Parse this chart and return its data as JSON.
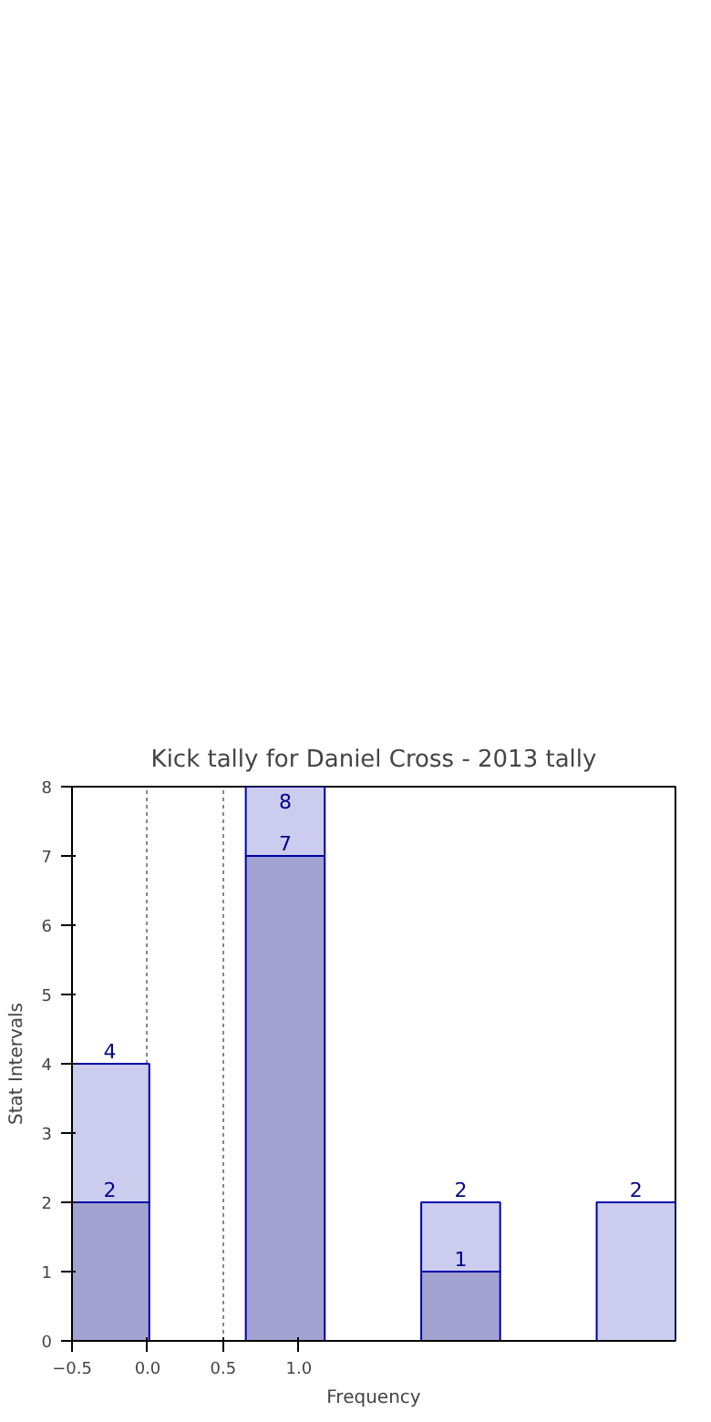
{
  "chart_data": {
    "type": "bar",
    "title": "Kick tally for Daniel Cross - 2013 tally",
    "xlabel": "Frequency",
    "ylabel": "Stat Intervals",
    "x": [
      -0.25,
      0.91,
      2.07,
      3.23
    ],
    "stacked": true,
    "series": [
      {
        "color": "#a3a3d1",
        "values": [
          2,
          7,
          1,
          null
        ],
        "value_labels": [
          "2",
          "7",
          "1",
          null
        ]
      },
      {
        "color": "#ccccee",
        "values": [
          2,
          1,
          1,
          2
        ]
      }
    ],
    "totals": [
      "4",
      "8",
      "2",
      "2"
    ],
    "xlim": [
      -0.5,
      3.49
    ],
    "xticks": [
      {
        "value": -0.5,
        "label": "−0.5"
      },
      {
        "value": 0,
        "label": "0.0"
      },
      {
        "value": 0.5,
        "label": "0.5"
      },
      {
        "value": 1,
        "label": "1.0"
      }
    ],
    "ylim": [
      0,
      8
    ],
    "yticks": [
      0,
      1,
      2,
      3,
      4,
      5,
      6,
      7,
      8
    ],
    "grid": "x"
  }
}
